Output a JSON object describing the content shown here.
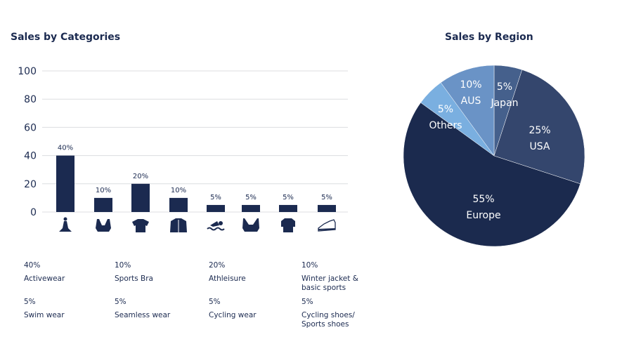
{
  "chart_data": [
    {
      "type": "bar",
      "title": "Sales by Categories",
      "categories": [
        "Activewear",
        "Sports Bra",
        "Athleisure",
        "Winter jacket & basic sports",
        "Swim wear",
        "Seamless wear",
        "Cycling wear",
        "Cycling shoes/ Sports shoes"
      ],
      "values": [
        40,
        10,
        20,
        10,
        5,
        5,
        5,
        5
      ],
      "labels": [
        "40%",
        "10%",
        "20%",
        "10%",
        "5%",
        "5%",
        "5%",
        "5%"
      ],
      "icons": [
        "yoga-icon",
        "sports-bra-icon",
        "tshirt-icon",
        "jacket-icon",
        "swimmer-icon",
        "bra-icon",
        "cycling-jersey-icon",
        "shoe-icon"
      ],
      "yticks": [
        "0",
        "20",
        "40",
        "60",
        "80",
        "100"
      ],
      "ylim": [
        0,
        100
      ],
      "grid": true,
      "bar_color": "#1b2a50"
    },
    {
      "type": "pie",
      "title": "Sales by Region",
      "slices": [
        {
          "name": "Japan",
          "value": 5,
          "label": "5%",
          "color": "#45608c"
        },
        {
          "name": "USA",
          "value": 25,
          "label": "25%",
          "color": "#34466d"
        },
        {
          "name": "Europe",
          "value": 55,
          "label": "55%",
          "color": "#1b2a4e"
        },
        {
          "name": "Others",
          "value": 5,
          "label": "5%",
          "color": "#7aafe0"
        },
        {
          "name": "AUS",
          "value": 10,
          "label": "10%",
          "color": "#6a93c6"
        }
      ]
    }
  ],
  "legend": [
    {
      "pct": "40%",
      "name": "Activewear"
    },
    {
      "pct": "10%",
      "name": "Sports Bra"
    },
    {
      "pct": "20%",
      "name": "Athleisure"
    },
    {
      "pct": "10%",
      "name": "Winter jacket & basic sports"
    },
    {
      "pct": "5%",
      "name": "Swim wear"
    },
    {
      "pct": "5%",
      "name": "Seamless wear"
    },
    {
      "pct": "5%",
      "name": "Cycling wear"
    },
    {
      "pct": "5%",
      "name": "Cycling shoes/ Sports shoes"
    }
  ]
}
